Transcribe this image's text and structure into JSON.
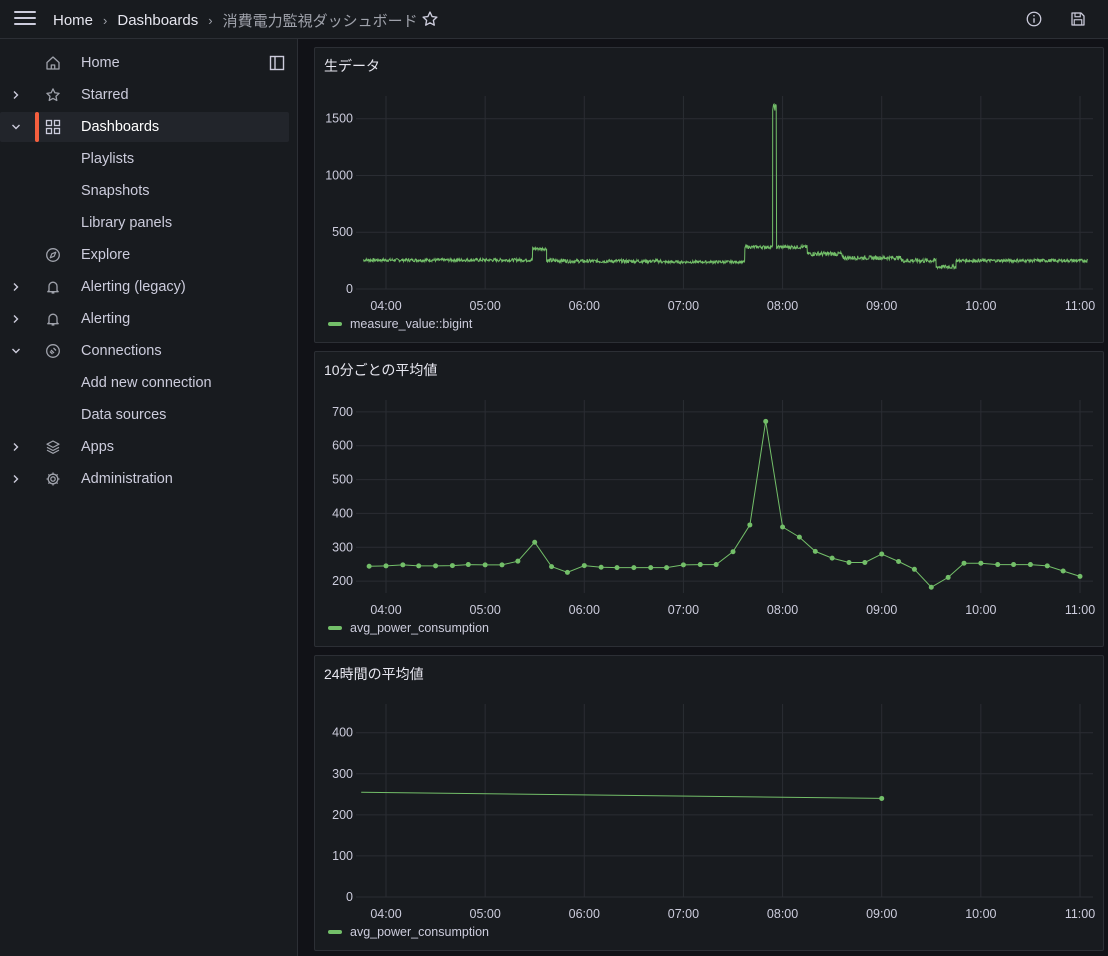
{
  "topbar": {
    "breadcrumbs": [
      "Home",
      "Dashboards",
      "消費電力監視ダッシュボード"
    ],
    "icons": [
      "menu-icon",
      "star-icon",
      "info-icon",
      "save-icon"
    ]
  },
  "sidebar": {
    "items": [
      {
        "label": "Home",
        "icon": "home-icon",
        "chevron": "",
        "sub": false
      },
      {
        "label": "Starred",
        "icon": "star-icon",
        "chevron": "right",
        "sub": false
      },
      {
        "label": "Dashboards",
        "icon": "grid-icon",
        "chevron": "down",
        "sub": false,
        "active": true
      },
      {
        "label": "Playlists",
        "icon": "",
        "chevron": "",
        "sub": true
      },
      {
        "label": "Snapshots",
        "icon": "",
        "chevron": "",
        "sub": true
      },
      {
        "label": "Library panels",
        "icon": "",
        "chevron": "",
        "sub": true
      },
      {
        "label": "Explore",
        "icon": "compass-icon",
        "chevron": "",
        "sub": false
      },
      {
        "label": "Alerting (legacy)",
        "icon": "bell-icon",
        "chevron": "right",
        "sub": false
      },
      {
        "label": "Alerting",
        "icon": "bell-icon",
        "chevron": "right",
        "sub": false
      },
      {
        "label": "Connections",
        "icon": "plug-icon",
        "chevron": "down",
        "sub": false
      },
      {
        "label": "Add new connection",
        "icon": "",
        "chevron": "",
        "sub": true
      },
      {
        "label": "Data sources",
        "icon": "",
        "chevron": "",
        "sub": true
      },
      {
        "label": "Apps",
        "icon": "layers-icon",
        "chevron": "right",
        "sub": false
      },
      {
        "label": "Administration",
        "icon": "gear-icon",
        "chevron": "right",
        "sub": false
      }
    ]
  },
  "colors": {
    "series": "#73bf69",
    "accent": "#f55f3e"
  },
  "chart_data": [
    {
      "type": "line",
      "title": "生データ",
      "legend": "measure_value::bigint",
      "x_ticks": [
        "04:00",
        "05:00",
        "06:00",
        "07:00",
        "08:00",
        "09:00",
        "10:00",
        "11:00"
      ],
      "y_ticks": [
        "0",
        "500",
        "1000",
        "1500"
      ],
      "ylim": [
        0,
        1700
      ],
      "xlim_hours": [
        3.75,
        11.08
      ],
      "segments": [
        {
          "from": 3.77,
          "to": 5.48,
          "base": 255,
          "noise": 14
        },
        {
          "from": 5.48,
          "to": 5.62,
          "base": 355,
          "noise": 14
        },
        {
          "from": 5.62,
          "to": 5.82,
          "base": 250,
          "noise": 18
        },
        {
          "from": 5.82,
          "to": 6.78,
          "base": 245,
          "noise": 16
        },
        {
          "from": 6.78,
          "to": 7.62,
          "base": 238,
          "noise": 12
        },
        {
          "from": 7.62,
          "to": 7.9,
          "base": 370,
          "noise": 14
        },
        {
          "from": 7.9,
          "to": 7.94,
          "base": 1600,
          "noise": 30
        },
        {
          "from": 7.94,
          "to": 8.25,
          "base": 370,
          "noise": 16
        },
        {
          "from": 8.25,
          "to": 8.6,
          "base": 310,
          "noise": 20
        },
        {
          "from": 8.6,
          "to": 9.2,
          "base": 275,
          "noise": 18
        },
        {
          "from": 9.2,
          "to": 9.55,
          "base": 250,
          "noise": 20
        },
        {
          "from": 9.55,
          "to": 9.75,
          "base": 195,
          "noise": 18
        },
        {
          "from": 9.75,
          "to": 11.08,
          "base": 250,
          "noise": 14
        }
      ]
    },
    {
      "type": "line",
      "title": "10分ごとの平均値",
      "legend": "avg_power_consumption",
      "x_ticks": [
        "04:00",
        "05:00",
        "06:00",
        "07:00",
        "08:00",
        "09:00",
        "10:00",
        "11:00"
      ],
      "y_ticks": [
        "200",
        "300",
        "400",
        "500",
        "600",
        "700"
      ],
      "ylim": [
        165,
        735
      ],
      "xlim_hours": [
        3.75,
        11.08
      ],
      "x_hours": [
        3.83,
        4.0,
        4.17,
        4.33,
        4.5,
        4.67,
        4.83,
        5.0,
        5.17,
        5.33,
        5.5,
        5.67,
        5.83,
        6.0,
        6.17,
        6.33,
        6.5,
        6.67,
        6.83,
        7.0,
        7.17,
        7.33,
        7.5,
        7.67,
        7.83,
        8.0,
        8.17,
        8.33,
        8.5,
        8.67,
        8.83,
        9.0,
        9.17,
        9.33,
        9.5,
        9.67,
        9.83,
        10.0,
        10.17,
        10.33,
        10.5,
        10.67,
        10.83,
        11.0
      ],
      "values": [
        244,
        245,
        248,
        245,
        245,
        246,
        249,
        248,
        248,
        259,
        315,
        243,
        226,
        246,
        241,
        240,
        240,
        240,
        240,
        248,
        249,
        249,
        287,
        366,
        672,
        360,
        330,
        288,
        268,
        255,
        255,
        280,
        258,
        235,
        182,
        211,
        253,
        253,
        249,
        249,
        249,
        245,
        230,
        214
      ]
    },
    {
      "type": "line",
      "title": "24時間の平均値",
      "legend": "avg_power_consumption",
      "x_ticks": [
        "04:00",
        "05:00",
        "06:00",
        "07:00",
        "08:00",
        "09:00",
        "10:00",
        "11:00"
      ],
      "y_ticks": [
        "0",
        "100",
        "200",
        "300",
        "400"
      ],
      "ylim": [
        0,
        470
      ],
      "xlim_hours": [
        3.75,
        11.08
      ],
      "x_hours": [
        3.75,
        9.0
      ],
      "values": [
        255,
        240
      ],
      "marker_index": 1
    }
  ]
}
